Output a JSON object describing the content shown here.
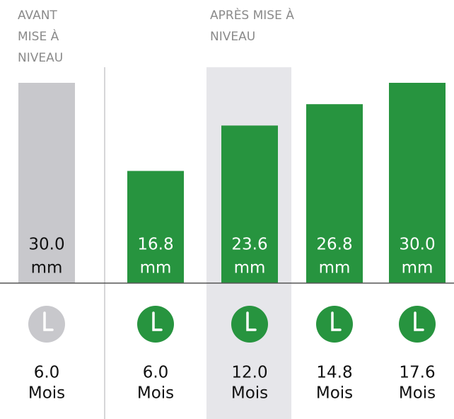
{
  "chart_data": {
    "type": "bar",
    "annotations": [
      {
        "lines": [
          "AVANT",
          "MISE À",
          "NIVEAU"
        ]
      },
      {
        "lines": [
          "APRÈS MISE À",
          "NIVEAU"
        ]
      }
    ],
    "categories": [
      "6.0",
      "6.0",
      "12.0",
      "14.8",
      "17.6"
    ],
    "category_unit": "Mois",
    "values": [
      30,
      16.8,
      23.6,
      26.8,
      30
    ],
    "value_labels": [
      "30.0",
      "16.8",
      "23.6",
      "26.8",
      "30.0"
    ],
    "value_unit": "mm",
    "colors": [
      "#c8c8cc",
      "#27943f",
      "#27943f",
      "#27943f",
      "#27943f"
    ],
    "highlight": 2,
    "ylim": [
      0,
      30
    ]
  }
}
